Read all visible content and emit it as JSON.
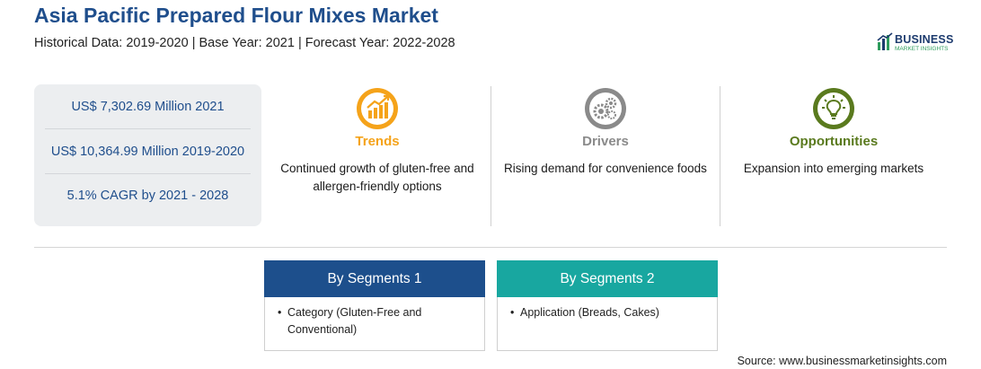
{
  "header": {
    "title": "Asia Pacific Prepared Flour Mixes Market",
    "subtitle": "Historical Data: 2019-2020 | Base Year: 2021 | Forecast Year: 2022-2028"
  },
  "logo": {
    "word": "BUSINESS",
    "sub": "MARKET INSIGHTS"
  },
  "stats": [
    "US$ 7,302.69 Million 2021",
    "US$ 10,364.99 Million 2019-2020",
    "5.1% CAGR by 2021 - 2028"
  ],
  "columns": {
    "trends": {
      "title": "Trends",
      "text": "Continued growth of gluten-free and allergen-friendly options",
      "color": "#f5a31a",
      "icon": "trending-chart-icon"
    },
    "drivers": {
      "title": "Drivers",
      "text": "Rising demand for convenience foods",
      "color": "#8a8a8a",
      "icon": "gears-icon"
    },
    "opportunities": {
      "title": "Opportunities",
      "text": "Expansion into emerging markets",
      "color": "#5a7a1e",
      "icon": "lightbulb-icon"
    }
  },
  "segments": [
    {
      "heading": "By Segments 1",
      "color": "#1d4f8c",
      "items": [
        "Category (Gluten-Free and Conventional)"
      ]
    },
    {
      "heading": "By Segments 2",
      "color": "#18a7a0",
      "items": [
        "Application (Breads, Cakes)"
      ]
    }
  ],
  "footer": {
    "source": "Source: www.businessmarketinsights.com"
  }
}
